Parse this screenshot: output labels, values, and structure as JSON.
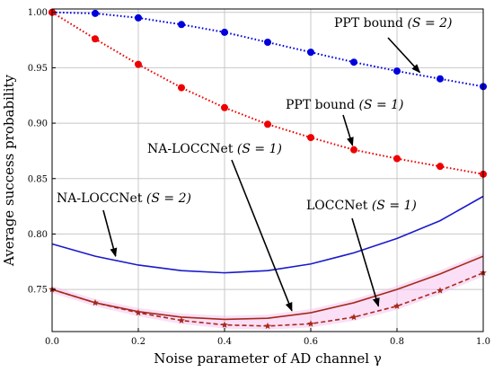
{
  "chart_data": {
    "type": "line",
    "xlabel": "Noise parameter of AD channel γ",
    "ylabel": "Average success probability",
    "xlim": [
      0.0,
      1.0
    ],
    "ylim": [
      0.712,
      1.003
    ],
    "x_ticks": [
      "0.0",
      "0.2",
      "0.4",
      "0.6",
      "0.8",
      "1.0"
    ],
    "y_ticks": [
      "0.75",
      "0.80",
      "0.85",
      "0.90",
      "0.95",
      "1.00"
    ],
    "grid": true,
    "series": [
      {
        "name": "PPT bound (S = 2)",
        "style": "dotted-markers",
        "color": "#0000dd",
        "marker": "circle",
        "x": [
          0.0,
          0.1,
          0.2,
          0.3,
          0.4,
          0.5,
          0.6,
          0.7,
          0.8,
          0.9,
          1.0
        ],
        "y": [
          1.0,
          0.999,
          0.995,
          0.989,
          0.982,
          0.973,
          0.964,
          0.955,
          0.947,
          0.94,
          0.933
        ]
      },
      {
        "name": "PPT bound (S = 1)",
        "style": "dotted-markers",
        "color": "#ee0000",
        "marker": "circle",
        "x": [
          0.0,
          0.1,
          0.2,
          0.3,
          0.4,
          0.5,
          0.6,
          0.7,
          0.8,
          0.9,
          1.0
        ],
        "y": [
          1.0,
          0.976,
          0.953,
          0.932,
          0.914,
          0.899,
          0.887,
          0.876,
          0.868,
          0.861,
          0.854
        ]
      },
      {
        "name": "NA-LOCCNet (S = 2)",
        "style": "solid",
        "color": "#1a1acc",
        "x": [
          0.0,
          0.1,
          0.2,
          0.3,
          0.4,
          0.5,
          0.6,
          0.7,
          0.8,
          0.9,
          1.0
        ],
        "y": [
          0.791,
          0.78,
          0.772,
          0.767,
          0.765,
          0.767,
          0.773,
          0.783,
          0.796,
          0.812,
          0.834
        ]
      },
      {
        "name": "NA-LOCCNet (S = 1)",
        "style": "solid",
        "color": "#a52a1a",
        "x": [
          0.0,
          0.1,
          0.2,
          0.3,
          0.4,
          0.5,
          0.6,
          0.7,
          0.8,
          0.9,
          1.0
        ],
        "y": [
          0.75,
          0.738,
          0.73,
          0.725,
          0.723,
          0.724,
          0.729,
          0.738,
          0.75,
          0.764,
          0.78
        ]
      },
      {
        "name": "LOCCNet (S = 1)",
        "style": "dashed-markers",
        "color": "#a52a1a",
        "marker": "star",
        "x": [
          0.0,
          0.1,
          0.2,
          0.3,
          0.4,
          0.5,
          0.6,
          0.7,
          0.8,
          0.9,
          1.0
        ],
        "y": [
          0.75,
          0.738,
          0.729,
          0.722,
          0.718,
          0.717,
          0.719,
          0.725,
          0.735,
          0.749,
          0.765
        ]
      }
    ],
    "annotations": [
      {
        "label": "PPT bound",
        "math": "(S = 2)",
        "arrow_to_series": 0,
        "arrow_x": 0.86
      },
      {
        "label": "PPT bound",
        "math": "(S = 1)",
        "arrow_to_series": 1,
        "arrow_x": 0.7
      },
      {
        "label": "NA-LOCCNet",
        "math": "(S = 1)",
        "arrow_to_series": 3,
        "arrow_x": 0.56
      },
      {
        "label": "NA-LOCCNet",
        "math": "(S = 2)",
        "arrow_to_series": 2,
        "arrow_x": 0.15
      },
      {
        "label": "LOCCNet",
        "math": "(S = 1)",
        "arrow_to_series": 4,
        "arrow_x": 0.76
      }
    ]
  }
}
